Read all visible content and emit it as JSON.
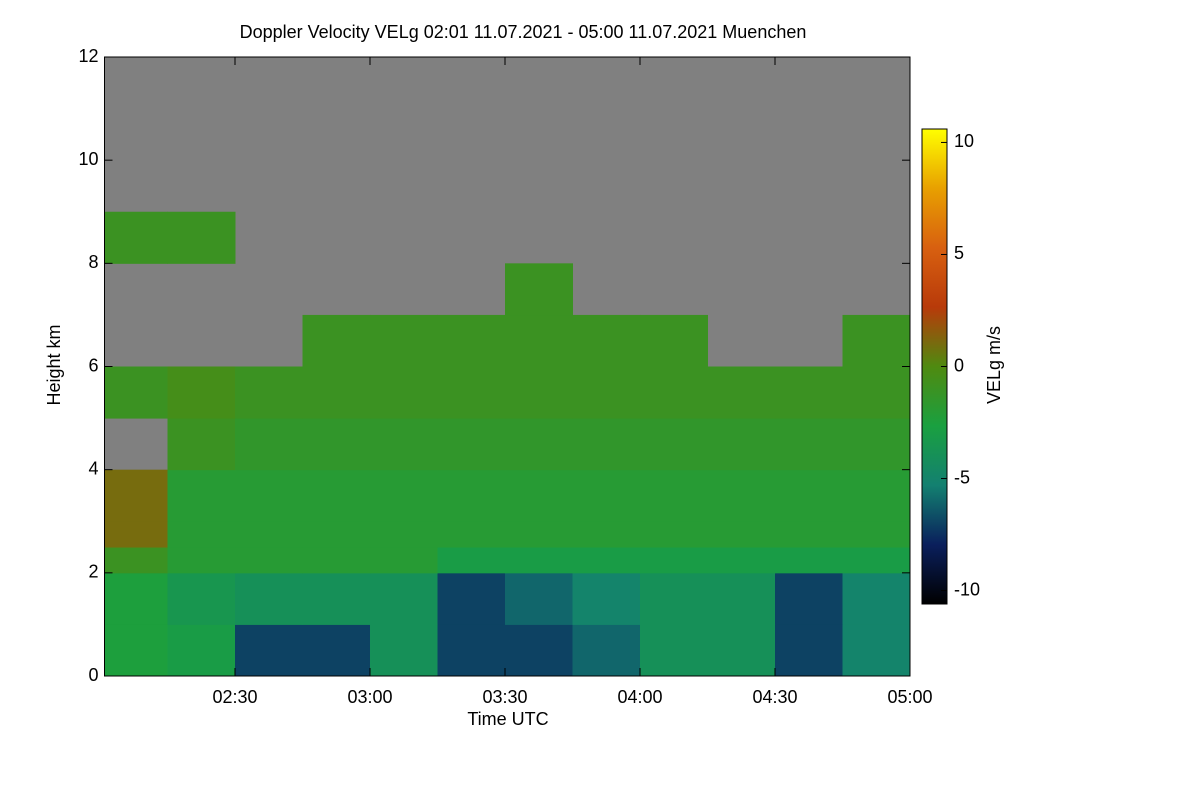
{
  "chart_data": {
    "type": "heatmap",
    "title": "Doppler Velocity VELg   02:01 11.07.2021 - 05:00 11.07.2021 Muenchen",
    "x_label": "Time UTC",
    "y_label": "Height km",
    "colorbar_label": "VELg m/s",
    "xlim": [
      121,
      300
    ],
    "xticks": [
      {
        "value": 150,
        "label": "02:30"
      },
      {
        "value": 180,
        "label": "03:00"
      },
      {
        "value": 210,
        "label": "03:30"
      },
      {
        "value": 240,
        "label": "04:00"
      },
      {
        "value": 270,
        "label": "04:30"
      },
      {
        "value": 300,
        "label": "05:00"
      }
    ],
    "ylim": [
      0,
      12
    ],
    "yticks": [
      0,
      2,
      4,
      6,
      8,
      10,
      12
    ],
    "clim": [
      -10.6,
      10.6
    ],
    "cticks": [
      -10,
      -5,
      0,
      5,
      10
    ],
    "colormap": [
      "#000000",
      "#0a1f5c",
      "#138070",
      "#1aa040",
      "#4f8a10",
      "#b83a0a",
      "#d86010",
      "#e8a000",
      "#ffff00"
    ],
    "missing_color": "#808080",
    "x_edges": [
      121,
      135,
      150,
      165,
      180,
      195,
      210,
      225,
      240,
      255,
      270,
      285,
      300
    ],
    "y_edges": [
      0,
      1,
      2,
      2.5,
      3,
      4,
      5,
      6,
      7,
      8,
      9,
      10,
      12
    ],
    "values": [
      [
        -2.5,
        -3,
        -7,
        -7,
        -4,
        -7,
        -7,
        -6,
        -4,
        -4,
        -7,
        -5
      ],
      [
        -2.5,
        -3.5,
        -4,
        -4,
        -4,
        -7,
        -6,
        -5,
        -4,
        -4,
        -7,
        -5
      ],
      [
        -1,
        -2,
        -2,
        -2,
        -2,
        -3,
        -3,
        -3,
        -3,
        -3,
        -3,
        -3
      ],
      [
        1,
        -2,
        -2,
        -2,
        -2,
        -2,
        -2,
        -2,
        -2,
        -2,
        -2,
        -2
      ],
      [
        1,
        -2,
        -2,
        -2,
        -2,
        -2,
        -2,
        -2,
        -2,
        -2,
        -2,
        -2
      ],
      [
        null,
        -1,
        -1.5,
        -1.5,
        -1.5,
        -1.5,
        -1.5,
        -1.5,
        -1.5,
        -1.5,
        -1.5,
        -1.5
      ],
      [
        -1,
        -0.5,
        -1,
        -1,
        -1,
        -1,
        -1,
        -1,
        -1,
        -1,
        -1,
        -1
      ],
      [
        null,
        null,
        null,
        -1,
        -1,
        -1,
        -1,
        -1,
        -1,
        null,
        null,
        -1
      ],
      [
        null,
        null,
        null,
        null,
        null,
        null,
        -1,
        null,
        null,
        null,
        null,
        null
      ],
      [
        -1,
        -1,
        null,
        null,
        null,
        null,
        null,
        null,
        null,
        null,
        null,
        null
      ],
      [
        null,
        null,
        null,
        null,
        null,
        null,
        null,
        null,
        null,
        null,
        null,
        null
      ],
      [
        null,
        null,
        null,
        null,
        null,
        null,
        null,
        null,
        null,
        null,
        null,
        null
      ]
    ]
  }
}
